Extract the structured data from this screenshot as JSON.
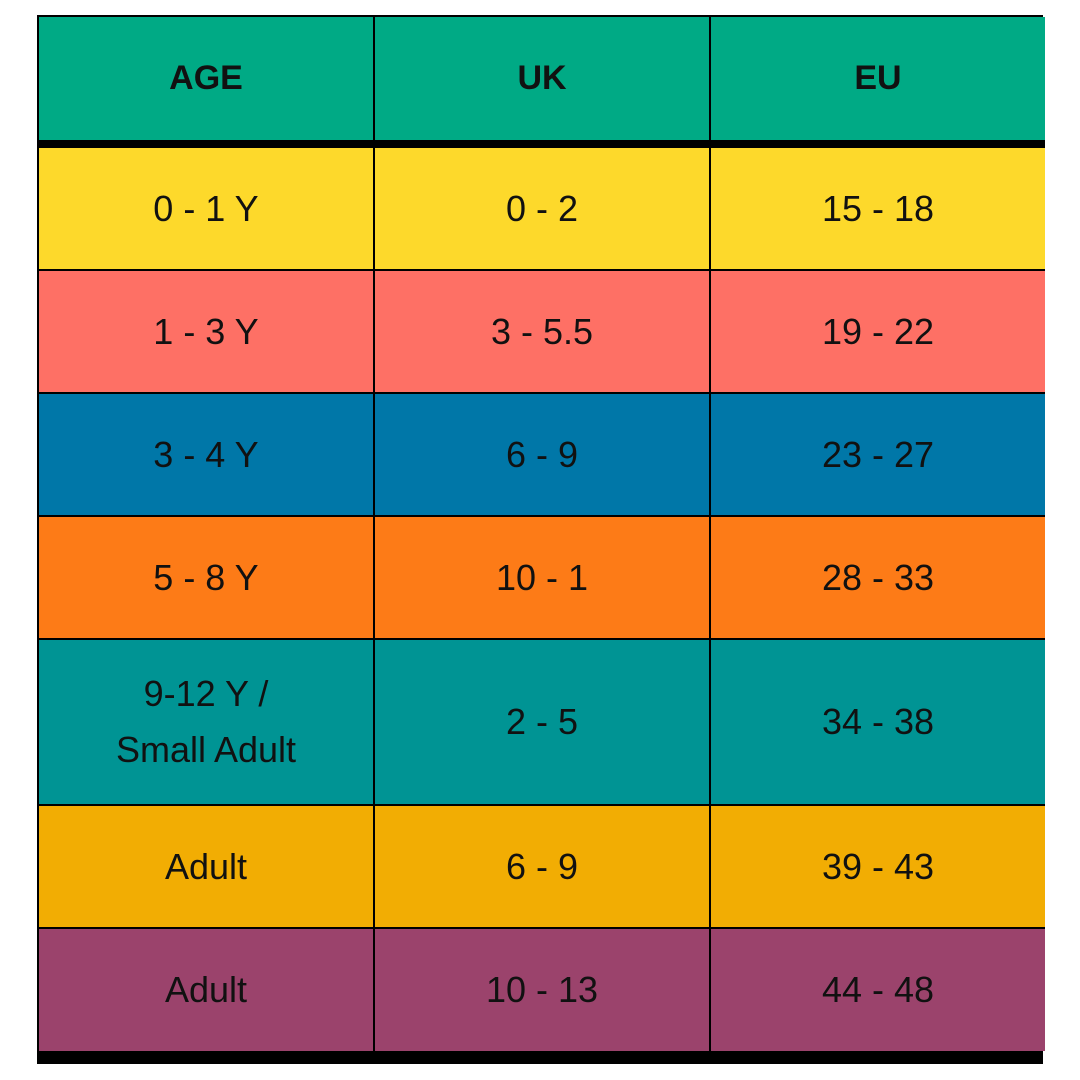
{
  "table": {
    "header": [
      "AGE",
      "UK",
      "EU"
    ],
    "rows": [
      [
        "0 - 1 Y",
        "0 - 2",
        "15 - 18"
      ],
      [
        "1 - 3 Y",
        "3 - 5.5",
        "19 - 22"
      ],
      [
        "3 - 4 Y",
        "6 - 9",
        "23 - 27"
      ],
      [
        "5 - 8 Y",
        "10 - 1",
        "28 - 33"
      ],
      [
        "9-12 Y /\nSmall Adult",
        "2 - 5",
        "34 - 38"
      ],
      [
        "Adult",
        "6 - 9",
        "39 - 43"
      ],
      [
        "Adult",
        "10 - 13",
        "44 - 48"
      ]
    ]
  }
}
